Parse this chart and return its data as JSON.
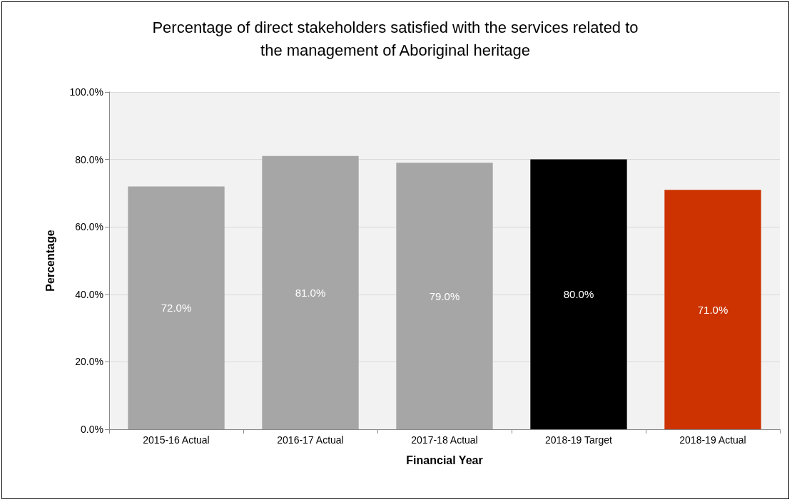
{
  "chart_data": {
    "type": "bar",
    "title": "Percentage of direct stakeholders satisfied with the services related to\nthe management of Aboriginal heritage",
    "xlabel": "Financial Year",
    "ylabel": "Percentage",
    "categories": [
      "2015-16 Actual",
      "2016-17 Actual",
      "2017-18 Actual",
      "2018-19 Target",
      "2018-19 Actual"
    ],
    "values": [
      72,
      81,
      79,
      80,
      71
    ],
    "colors": [
      "#a6a6a6",
      "#a6a6a6",
      "#a6a6a6",
      "#000000",
      "#cc3300"
    ],
    "value_labels": [
      "72.0%",
      "81.0%",
      "79.0%",
      "80.0%",
      "71.0%"
    ],
    "ylim": [
      0,
      100
    ],
    "yticks": [
      {
        "value": 0,
        "label": "0.0%"
      },
      {
        "value": 20,
        "label": "20.0%"
      },
      {
        "value": 40,
        "label": "40.0%"
      },
      {
        "value": 60,
        "label": "60.0%"
      },
      {
        "value": 80,
        "label": "80.0%"
      },
      {
        "value": 100,
        "label": "100.0%"
      }
    ],
    "grid": "y"
  }
}
